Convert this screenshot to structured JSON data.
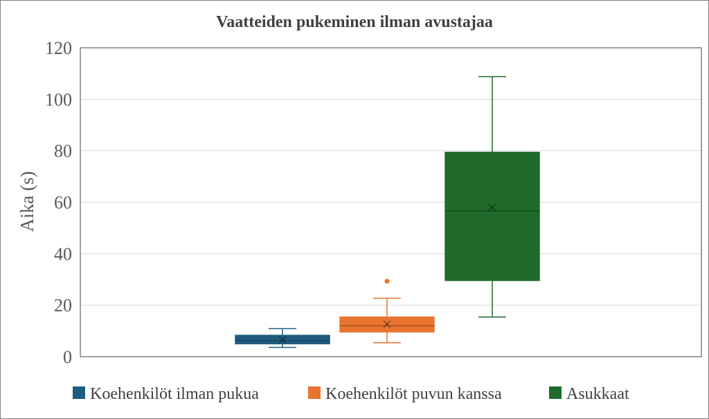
{
  "chart_data": {
    "type": "boxplot",
    "title": "Vaatteiden pukeminen ilman avustajaa",
    "ylabel": "Aika (s)",
    "xlabel": "",
    "ylim": [
      0,
      120
    ],
    "yticks": [
      0,
      20,
      40,
      60,
      80,
      100,
      120
    ],
    "grid": true,
    "legend_position": "bottom",
    "series": [
      {
        "name": "Koehenkilöt ilman pukua",
        "color": "#1f5c7f",
        "whisker_low": 3.6,
        "q1": 5.0,
        "median": 6.3,
        "q3": 8.3,
        "whisker_high": 10.9,
        "mean": 6.6,
        "outliers": []
      },
      {
        "name": "Koehenkilöt puvun kanssa",
        "color": "#e8742f",
        "whisker_low": 5.4,
        "q1": 9.6,
        "median": 12.0,
        "q3": 15.4,
        "whisker_high": 22.7,
        "mean": 12.6,
        "outliers": [
          29.3
        ]
      },
      {
        "name": "Asukkaat",
        "color": "#1e6b2a",
        "whisker_low": 15.4,
        "q1": 29.6,
        "median": 56.6,
        "q3": 79.4,
        "whisker_high": 108.8,
        "mean": 58.0,
        "outliers": []
      }
    ]
  }
}
